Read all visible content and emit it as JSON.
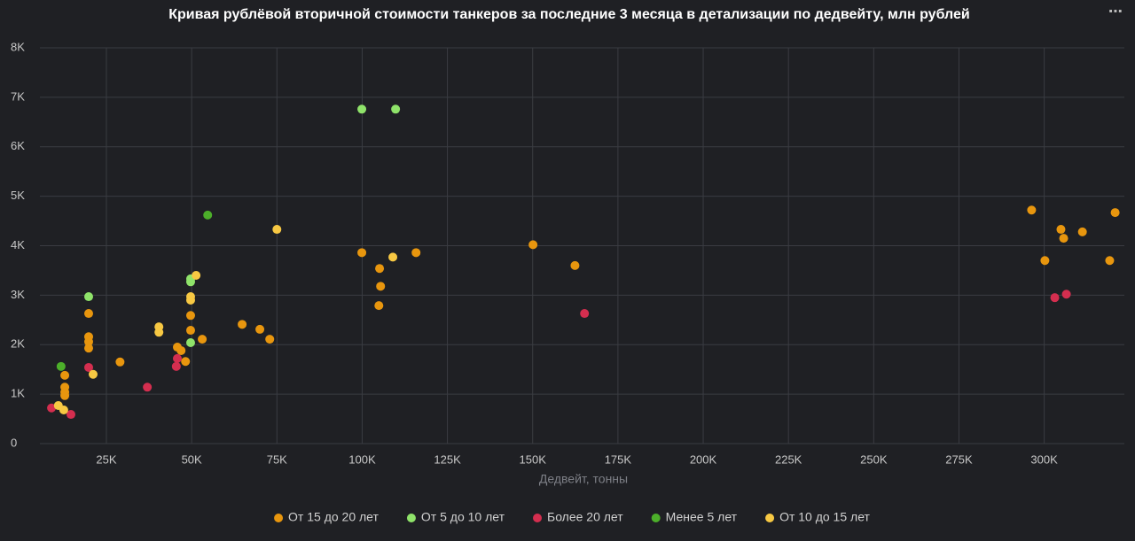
{
  "chart_data": {
    "type": "scatter",
    "title": "Кривая рублёвой вторичной стоимости танкеров за последние 3 месяца в детализации по дедвейту, млн рублей",
    "x_label": "Дедвейт, тонны",
    "xlim": [
      5500,
      323500
    ],
    "ylim": [
      0,
      8000
    ],
    "grid": true,
    "legend": "bottom",
    "xticks": [
      {
        "value": 25000,
        "label": "25K"
      },
      {
        "value": 50000,
        "label": "50K"
      },
      {
        "value": 75000,
        "label": "75K"
      },
      {
        "value": 100000,
        "label": "100K"
      },
      {
        "value": 125000,
        "label": "125K"
      },
      {
        "value": 150000,
        "label": "150K"
      },
      {
        "value": 175000,
        "label": "175K"
      },
      {
        "value": 200000,
        "label": "200K"
      },
      {
        "value": 225000,
        "label": "225K"
      },
      {
        "value": 250000,
        "label": "250K"
      },
      {
        "value": 275000,
        "label": "275K"
      },
      {
        "value": 300000,
        "label": "300K"
      }
    ],
    "yticks": [
      0,
      {
        "value": 1000,
        "label": "1K"
      },
      {
        "value": 2000,
        "label": "2K"
      },
      {
        "value": 3000,
        "label": "3K"
      },
      {
        "value": 4000,
        "label": "4K"
      },
      {
        "value": 5000,
        "label": "5K"
      },
      {
        "value": 6000,
        "label": "6K"
      },
      {
        "value": 7000,
        "label": "7K"
      },
      {
        "value": 8000,
        "label": "8K"
      }
    ],
    "series": [
      {
        "name": "От 15 до 20 лет",
        "color": "#e8960e",
        "x": [
          12800,
          12800,
          12800,
          12800,
          19800,
          19800,
          19800,
          19800,
          29000,
          45800,
          46900,
          48200,
          49700,
          49700,
          53100,
          64800,
          70000,
          72900,
          99900,
          105100,
          105400,
          104900,
          115800,
          150100,
          162400,
          296300,
          300200,
          304900,
          305700,
          311200,
          319200,
          320800
        ],
        "values": [
          1380,
          1140,
          1040,
          970,
          2630,
          2160,
          2060,
          1930,
          1650,
          1950,
          1880,
          1660,
          2590,
          2290,
          2110,
          2410,
          2310,
          2110,
          3860,
          3540,
          3180,
          2790,
          3860,
          4020,
          3600,
          4720,
          3700,
          4330,
          4150,
          4280,
          3700,
          4670
        ]
      },
      {
        "name": "От 5 до 10 лет",
        "color": "#8fe36a",
        "x": [
          19800,
          99900,
          109800,
          49700,
          49700,
          49700
        ],
        "values": [
          2970,
          6760,
          6760,
          3330,
          3270,
          2040
        ]
      },
      {
        "name": "Более 20 лет",
        "color": "#d42e4f",
        "x": [
          8900,
          14600,
          19800,
          37000,
          45500,
          45800,
          165200,
          303100,
          306500
        ],
        "values": [
          720,
          590,
          1540,
          1140,
          1560,
          1720,
          2630,
          2950,
          3020
        ]
      },
      {
        "name": "Менее 5 лет",
        "color": "#4caf2a",
        "x": [
          11700,
          54700
        ],
        "values": [
          1560,
          4620
        ]
      },
      {
        "name": "От 10 до 15 лет",
        "color": "#f7c843",
        "x": [
          10900,
          12500,
          21100,
          40400,
          40400,
          49700,
          49700,
          51300,
          75000,
          109000
        ],
        "values": [
          770,
          680,
          1400,
          2360,
          2250,
          2970,
          2900,
          3400,
          4330,
          3770
        ]
      }
    ]
  }
}
